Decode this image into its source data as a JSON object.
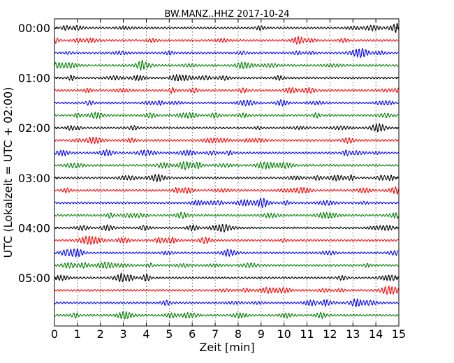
{
  "chart_data": {
    "type": "line",
    "title": "BW.MANZ..HHZ 2017-10-24",
    "xlabel": "Zeit  [min]",
    "ylabel": "UTC (Lokalzeit = UTC + 02:00)",
    "xlim": [
      0,
      15
    ],
    "x_ticks": [
      "0",
      "1",
      "2",
      "3",
      "4",
      "5",
      "6",
      "7",
      "8",
      "9",
      "10",
      "11",
      "12",
      "13",
      "14",
      "15"
    ],
    "y_tick_labels": [
      "00:00",
      "01:00",
      "02:00",
      "03:00",
      "04:00",
      "05:00"
    ],
    "minutes_per_line": 15,
    "lines_count": 24,
    "line_start_times": [
      "00:00",
      "00:15",
      "00:30",
      "00:45",
      "01:00",
      "01:15",
      "01:30",
      "01:45",
      "02:00",
      "02:15",
      "02:30",
      "02:45",
      "03:00",
      "03:15",
      "03:30",
      "03:45",
      "04:00",
      "04:15",
      "04:30",
      "04:45",
      "05:00",
      "05:15",
      "05:30",
      "05:45"
    ],
    "grid": "vertical dotted at each minute",
    "colors": [
      "#000000",
      "#ff0000",
      "#0000ff",
      "#008000"
    ]
  }
}
